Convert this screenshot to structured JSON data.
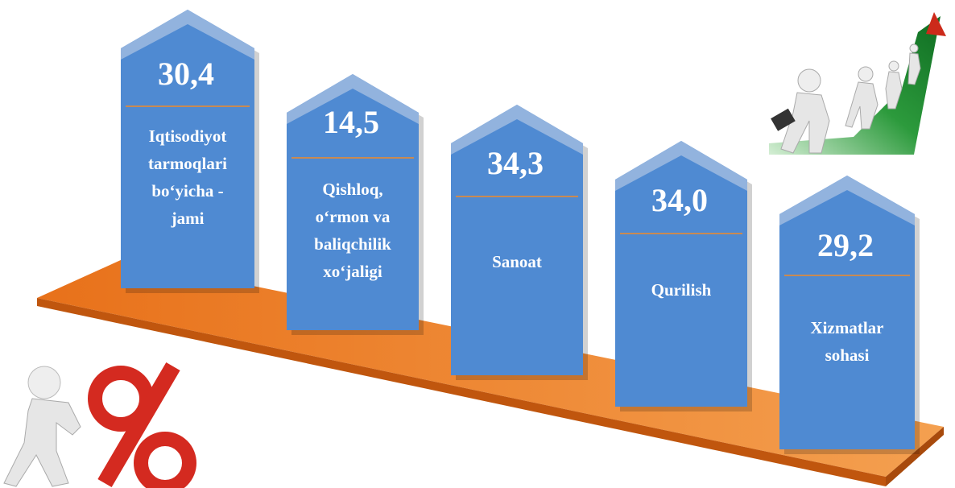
{
  "items": [
    {
      "value": "30,4",
      "label": [
        "Iqtisodiyot",
        "tarmoqlari",
        "bo‘yicha -",
        "jami"
      ]
    },
    {
      "value": "14,5",
      "label": [
        "Qishloq,",
        "o‘rmon va",
        "baliqchilik",
        "xo‘jaligi"
      ]
    },
    {
      "value": "34,3",
      "label": [
        "Sanoat"
      ]
    },
    {
      "value": "34,0",
      "label": [
        "Qurilish"
      ]
    },
    {
      "value": "29,2",
      "label": [
        "Xizmatlar",
        "sohasi"
      ]
    }
  ]
}
